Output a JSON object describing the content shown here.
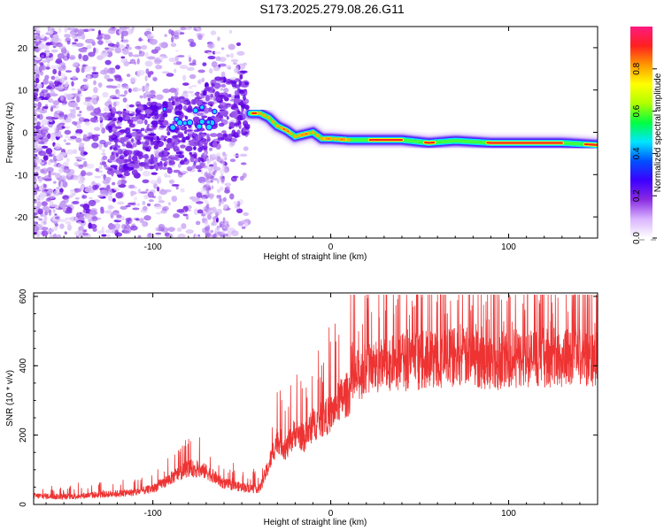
{
  "title": "S173.2025.279.08.26.G11",
  "chart_data": [
    {
      "type": "heatmap",
      "title": "S173.2025.279.08.26.G11",
      "xlabel": "Height of straight line (km)",
      "ylabel": "Frequency (Hz)",
      "xlim": [
        -167,
        150
      ],
      "ylim": [
        -25,
        25
      ],
      "xticks": [
        -100,
        0,
        100
      ],
      "yticks": [
        -20,
        -10,
        0,
        10,
        20
      ],
      "colorbar": {
        "label": "Normalized spectral amplitude",
        "range": [
          0,
          1
        ],
        "ticks": [
          "0.0",
          "0.2",
          "0.4",
          "0.6",
          "0.8"
        ],
        "colors": [
          "#ffffff",
          "#d9b3ff",
          "#8a2be2",
          "#3c00ff",
          "#0050ff",
          "#00e5ff",
          "#00ff40",
          "#b0ff00",
          "#ffff00",
          "#ff9900",
          "#ff2020",
          "#ff1a80"
        ]
      },
      "signal_track": {
        "x": [
          -45,
          -40,
          -35,
          -30,
          -25,
          -20,
          -15,
          -10,
          -5,
          0,
          10,
          20,
          40,
          55,
          70,
          90,
          110,
          130,
          150
        ],
        "y": [
          4.5,
          4.5,
          3.5,
          1.5,
          0.5,
          -1.0,
          -0.5,
          0.0,
          -1.5,
          -1.5,
          -1.8,
          -1.8,
          -1.8,
          -2.5,
          -2.0,
          -2.5,
          -2.5,
          -2.5,
          -3.0
        ]
      }
    },
    {
      "type": "line",
      "xlabel": "Height of straight line (km)",
      "ylabel": "SNR (10 * v/v)",
      "xlim": [
        -167,
        150
      ],
      "ylim": [
        0,
        610
      ],
      "xticks": [
        -100,
        0,
        100
      ],
      "yticks": [
        0,
        200,
        400,
        600
      ],
      "color": "#ee3333",
      "series": [
        {
          "name": "SNR",
          "x": [
            -167,
            -150,
            -130,
            -110,
            -100,
            -90,
            -80,
            -70,
            -60,
            -50,
            -40,
            -35,
            -30,
            -25,
            -20,
            -15,
            -10,
            -5,
            0,
            5,
            10,
            15,
            20,
            30,
            40,
            50,
            60,
            70,
            80,
            90,
            100,
            110,
            120,
            130,
            140,
            150
          ],
          "y": [
            25,
            22,
            28,
            35,
            45,
            75,
            105,
            95,
            60,
            50,
            45,
            110,
            190,
            160,
            210,
            190,
            230,
            245,
            260,
            300,
            320,
            370,
            390,
            400,
            410,
            415,
            420,
            425,
            425,
            410,
            420,
            420,
            425,
            420,
            425,
            430
          ]
        }
      ]
    }
  ]
}
